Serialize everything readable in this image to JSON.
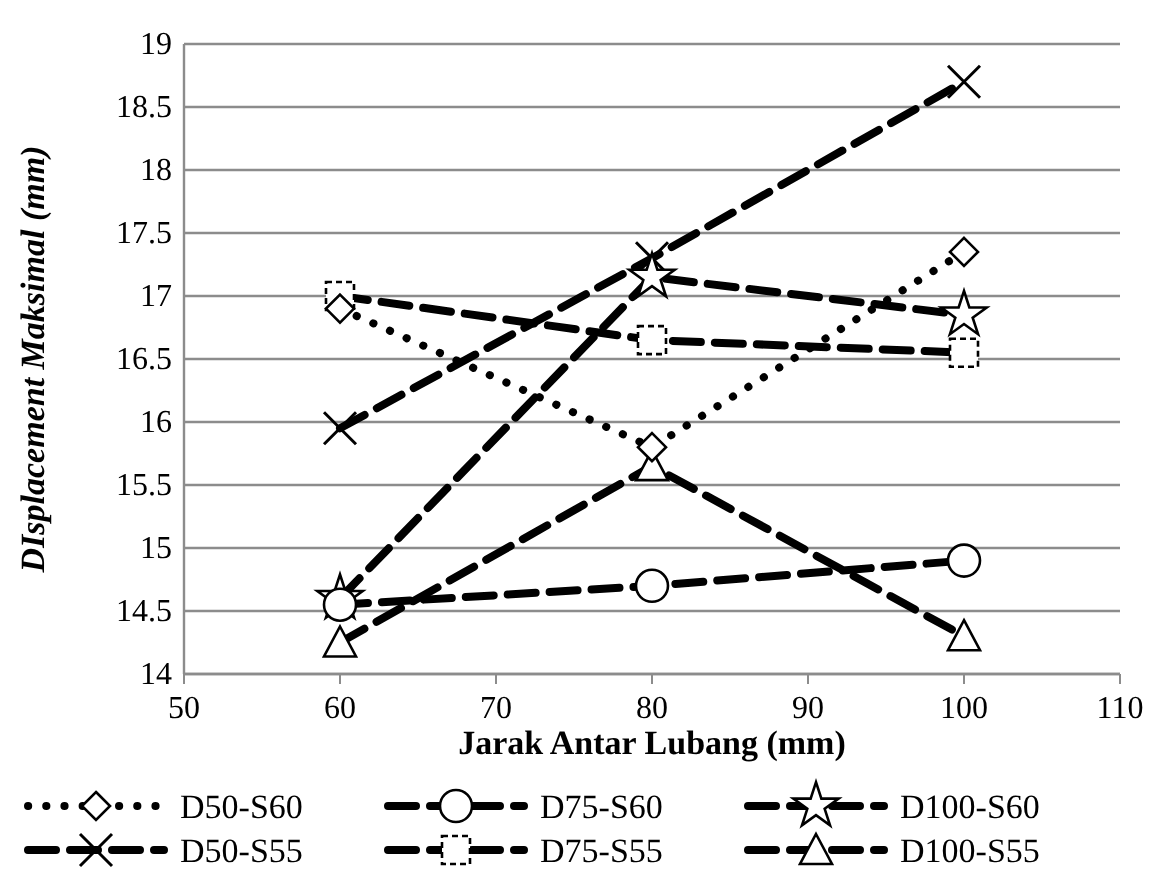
{
  "chart_data": {
    "type": "line",
    "xlabel": "Jarak Antar Lubang (mm)",
    "ylabel": "DIsplacement  Maksimal (mm)",
    "x": [
      60,
      80,
      100
    ],
    "xlim": [
      50,
      110
    ],
    "xticks": [
      50,
      60,
      70,
      80,
      90,
      100,
      110
    ],
    "ylim": [
      14,
      19
    ],
    "yticks": [
      14,
      14.5,
      15,
      15.5,
      16,
      16.5,
      17,
      17.5,
      18,
      18.5,
      19
    ],
    "grid": "y",
    "legend": "bottom",
    "series": [
      {
        "name": "D50-S60",
        "color": "#000000",
        "values": [
          16.9,
          15.8,
          17.35
        ],
        "marker": "diamond",
        "line_style": "dotted"
      },
      {
        "name": "D75-S60",
        "color": "#000000",
        "values": [
          14.55,
          14.7,
          14.9
        ],
        "marker": "circle",
        "line_style": "dashed"
      },
      {
        "name": "D100-S60",
        "color": "#000000",
        "values": [
          14.6,
          17.15,
          16.85
        ],
        "marker": "star",
        "line_style": "dashed"
      },
      {
        "name": "D50-S55",
        "color": "#000000",
        "values": [
          15.95,
          17.3,
          18.7
        ],
        "marker": "cross",
        "line_style": "dashed"
      },
      {
        "name": "D75-S55",
        "color": "#000000",
        "values": [
          17.0,
          16.65,
          16.55
        ],
        "marker": "square",
        "line_style": "dashed"
      },
      {
        "name": "D100-S55",
        "color": "#000000",
        "values": [
          14.25,
          15.65,
          14.3
        ],
        "marker": "triangle",
        "line_style": "dashed"
      }
    ]
  }
}
